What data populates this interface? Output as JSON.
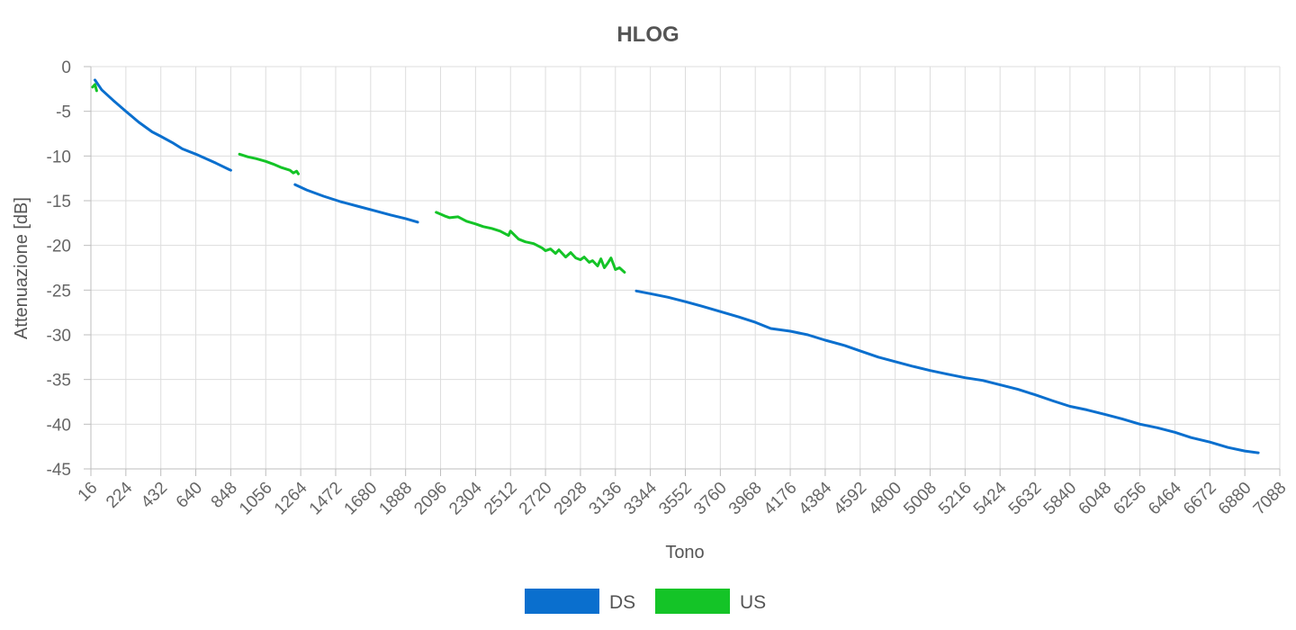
{
  "chart_data": {
    "type": "line",
    "title": "HLOG",
    "xlabel": "Tono",
    "ylabel": "Attenuazione [dB]",
    "xlim": [
      16,
      7088
    ],
    "ylim": [
      -45,
      0
    ],
    "x_ticks": [
      16,
      224,
      432,
      640,
      848,
      1056,
      1264,
      1472,
      1680,
      1888,
      2096,
      2304,
      2512,
      2720,
      2928,
      3136,
      3344,
      3552,
      3760,
      3968,
      4176,
      4384,
      4592,
      4800,
      5008,
      5216,
      5424,
      5632,
      5840,
      6048,
      6256,
      6464,
      6672,
      6880,
      7088
    ],
    "y_ticks": [
      0,
      -5,
      -10,
      -15,
      -20,
      -25,
      -30,
      -35,
      -40,
      -45
    ],
    "grid": true,
    "legend_position": "bottom",
    "series": [
      {
        "name": "DS",
        "color": "#0a6fce",
        "segments": [
          [
            [
              40,
              -1.5
            ],
            [
              80,
              -2.6
            ],
            [
              150,
              -3.8
            ],
            [
              224,
              -5.0
            ],
            [
              300,
              -6.2
            ],
            [
              380,
              -7.3
            ],
            [
              432,
              -7.8
            ],
            [
              500,
              -8.5
            ],
            [
              560,
              -9.2
            ],
            [
              640,
              -9.8
            ],
            [
              700,
              -10.3
            ],
            [
              760,
              -10.8
            ],
            [
              848,
              -11.6
            ]
          ],
          [
            [
              1230,
              -13.2
            ],
            [
              1300,
              -13.8
            ],
            [
              1400,
              -14.5
            ],
            [
              1500,
              -15.1
            ],
            [
              1600,
              -15.6
            ],
            [
              1700,
              -16.1
            ],
            [
              1800,
              -16.6
            ],
            [
              1888,
              -17.0
            ],
            [
              1960,
              -17.4
            ]
          ],
          [
            [
              3260,
              -25.1
            ],
            [
              3344,
              -25.4
            ],
            [
              3450,
              -25.8
            ],
            [
              3552,
              -26.3
            ],
            [
              3650,
              -26.8
            ],
            [
              3760,
              -27.4
            ],
            [
              3868,
              -28.0
            ],
            [
              3968,
              -28.6
            ],
            [
              4060,
              -29.3
            ],
            [
              4176,
              -29.6
            ],
            [
              4280,
              -30.0
            ],
            [
              4384,
              -30.6
            ],
            [
              4500,
              -31.2
            ],
            [
              4592,
              -31.8
            ],
            [
              4700,
              -32.5
            ],
            [
              4800,
              -33.0
            ],
            [
              4900,
              -33.5
            ],
            [
              5008,
              -34.0
            ],
            [
              5110,
              -34.4
            ],
            [
              5216,
              -34.8
            ],
            [
              5320,
              -35.1
            ],
            [
              5424,
              -35.6
            ],
            [
              5530,
              -36.1
            ],
            [
              5632,
              -36.7
            ],
            [
              5740,
              -37.4
            ],
            [
              5840,
              -38.0
            ],
            [
              5940,
              -38.4
            ],
            [
              6048,
              -38.9
            ],
            [
              6150,
              -39.4
            ],
            [
              6256,
              -40.0
            ],
            [
              6360,
              -40.4
            ],
            [
              6464,
              -40.9
            ],
            [
              6560,
              -41.5
            ],
            [
              6672,
              -42.0
            ],
            [
              6780,
              -42.6
            ],
            [
              6880,
              -43.0
            ],
            [
              6960,
              -43.2
            ]
          ]
        ]
      },
      {
        "name": "US",
        "color": "#14c427",
        "segments": [
          [
            [
              26,
              -2.3
            ],
            [
              40,
              -2.0
            ],
            [
              50,
              -2.7
            ]
          ],
          [
            [
              900,
              -9.8
            ],
            [
              950,
              -10.1
            ],
            [
              1000,
              -10.3
            ],
            [
              1056,
              -10.6
            ],
            [
              1100,
              -10.9
            ],
            [
              1150,
              -11.3
            ],
            [
              1200,
              -11.6
            ],
            [
              1220,
              -11.9
            ],
            [
              1240,
              -11.7
            ],
            [
              1250,
              -12.0
            ]
          ],
          [
            [
              2070,
              -16.3
            ],
            [
              2120,
              -16.7
            ],
            [
              2150,
              -16.9
            ],
            [
              2200,
              -16.8
            ],
            [
              2250,
              -17.3
            ],
            [
              2304,
              -17.6
            ],
            [
              2350,
              -17.9
            ],
            [
              2400,
              -18.1
            ],
            [
              2450,
              -18.4
            ],
            [
              2500,
              -18.9
            ],
            [
              2512,
              -18.4
            ],
            [
              2560,
              -19.3
            ],
            [
              2600,
              -19.6
            ],
            [
              2650,
              -19.8
            ],
            [
              2700,
              -20.3
            ],
            [
              2720,
              -20.6
            ],
            [
              2750,
              -20.4
            ],
            [
              2780,
              -20.9
            ],
            [
              2800,
              -20.5
            ],
            [
              2840,
              -21.3
            ],
            [
              2870,
              -20.8
            ],
            [
              2900,
              -21.4
            ],
            [
              2928,
              -21.6
            ],
            [
              2950,
              -21.3
            ],
            [
              2980,
              -21.9
            ],
            [
              3000,
              -21.7
            ],
            [
              3030,
              -22.3
            ],
            [
              3050,
              -21.5
            ],
            [
              3070,
              -22.5
            ],
            [
              3090,
              -22.0
            ],
            [
              3110,
              -21.4
            ],
            [
              3136,
              -22.7
            ],
            [
              3160,
              -22.5
            ],
            [
              3190,
              -23.0
            ]
          ]
        ]
      }
    ]
  }
}
